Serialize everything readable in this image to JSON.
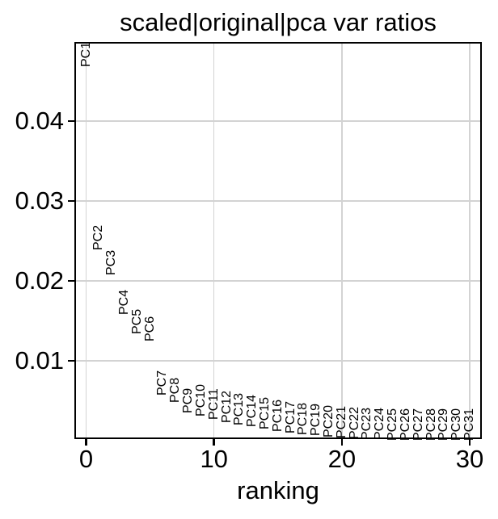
{
  "figure": {
    "background_color": "#ffffff",
    "text_color": "#000000",
    "grid_color": "#d3d3d3",
    "spine_color": "#000000"
  },
  "chart_data": {
    "type": "scatter",
    "subtype": "scree-plot-with-text-markers",
    "title": "scaled|original|pca var ratios",
    "xlabel": "ranking",
    "ylabel": "",
    "grid": true,
    "legend": false,
    "marker_style": "rotated-text-labels",
    "xlim": [
      -0.92,
      30.95
    ],
    "ylim": [
      0.0002,
      0.0499
    ],
    "xticks": [
      0,
      10,
      20,
      30
    ],
    "xtick_labels": [
      "0",
      "10",
      "20",
      "30"
    ],
    "yticks": [
      0.01,
      0.02,
      0.03,
      0.04
    ],
    "ytick_labels": [
      "0.01",
      "0.02",
      "0.03",
      "0.04"
    ],
    "points": [
      {
        "label": "PC1",
        "x": 0,
        "y": 0.0471
      },
      {
        "label": "PC2",
        "x": 1,
        "y": 0.0241
      },
      {
        "label": "PC3",
        "x": 2,
        "y": 0.021
      },
      {
        "label": "PC4",
        "x": 3,
        "y": 0.0161
      },
      {
        "label": "PC5",
        "x": 4,
        "y": 0.0136
      },
      {
        "label": "PC6",
        "x": 5,
        "y": 0.0127
      },
      {
        "label": "PC7",
        "x": 6,
        "y": 0.006
      },
      {
        "label": "PC8",
        "x": 7,
        "y": 0.005
      },
      {
        "label": "PC9",
        "x": 8,
        "y": 0.0037
      },
      {
        "label": "PC10",
        "x": 9,
        "y": 0.0033
      },
      {
        "label": "PC11",
        "x": 10,
        "y": 0.0029
      },
      {
        "label": "PC12",
        "x": 11,
        "y": 0.0025
      },
      {
        "label": "PC13",
        "x": 12,
        "y": 0.0022
      },
      {
        "label": "PC14",
        "x": 13,
        "y": 0.002
      },
      {
        "label": "PC15",
        "x": 14,
        "y": 0.00172
      },
      {
        "label": "PC16",
        "x": 15,
        "y": 0.00146
      },
      {
        "label": "PC17",
        "x": 16,
        "y": 0.00121
      },
      {
        "label": "PC18",
        "x": 17,
        "y": 0.00101
      },
      {
        "label": "PC19",
        "x": 18,
        "y": 0.00086
      },
      {
        "label": "PC20",
        "x": 19,
        "y": 0.00071
      },
      {
        "label": "PC21",
        "x": 20,
        "y": 0.00056
      },
      {
        "label": "PC22",
        "x": 21,
        "y": 0.00048
      },
      {
        "label": "PC23",
        "x": 22,
        "y": 0.00042
      },
      {
        "label": "PC24",
        "x": 23,
        "y": 0.00038
      },
      {
        "label": "PC25",
        "x": 24,
        "y": 0.00035
      },
      {
        "label": "PC26",
        "x": 25,
        "y": 0.00032
      },
      {
        "label": "PC27",
        "x": 26,
        "y": 0.0003
      },
      {
        "label": "PC28",
        "x": 27,
        "y": 0.00029
      },
      {
        "label": "PC29",
        "x": 28,
        "y": 0.00028
      },
      {
        "label": "PC30",
        "x": 29,
        "y": 0.00027
      },
      {
        "label": "PC31",
        "x": 30,
        "y": 0.00026
      }
    ]
  }
}
